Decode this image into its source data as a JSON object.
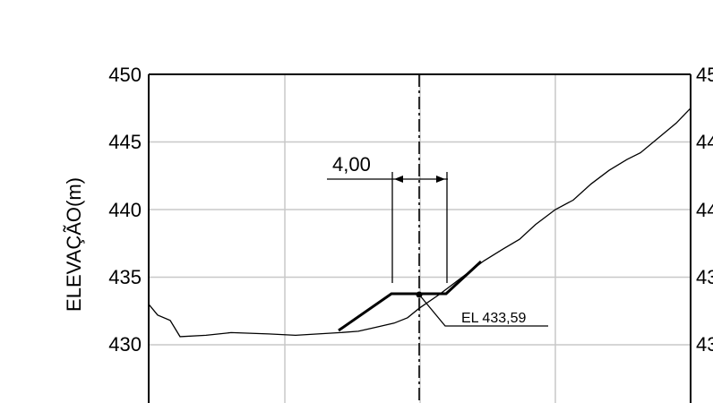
{
  "chart_data": {
    "type": "line",
    "ylabel": "ELEVAÇÃO(m)",
    "ylim": [
      425,
      450
    ],
    "y_ticks": [
      450,
      445,
      440,
      435,
      430
    ],
    "y_tick_labels_right": [
      "45",
      "44",
      "44",
      "43",
      "43"
    ],
    "grid": true,
    "series": [
      {
        "values": [
          433,
          432.2,
          431.8,
          430.6,
          430.7,
          430.9,
          430.8,
          430.7,
          430.8,
          430.9,
          431.0,
          431.3,
          431.6,
          432.0,
          432.7,
          433.7,
          434.7,
          436.2,
          437.1,
          437.8,
          438.9,
          440.0,
          440.7,
          441.9,
          442.9,
          443.7,
          444.2,
          445.3,
          446.4,
          447.5
        ]
      }
    ],
    "annotations": {
      "dimension": "4,00",
      "elevation_label": "EL 433,59"
    }
  },
  "colors": {
    "grid": "#c8c8c8",
    "line": "#000000"
  }
}
